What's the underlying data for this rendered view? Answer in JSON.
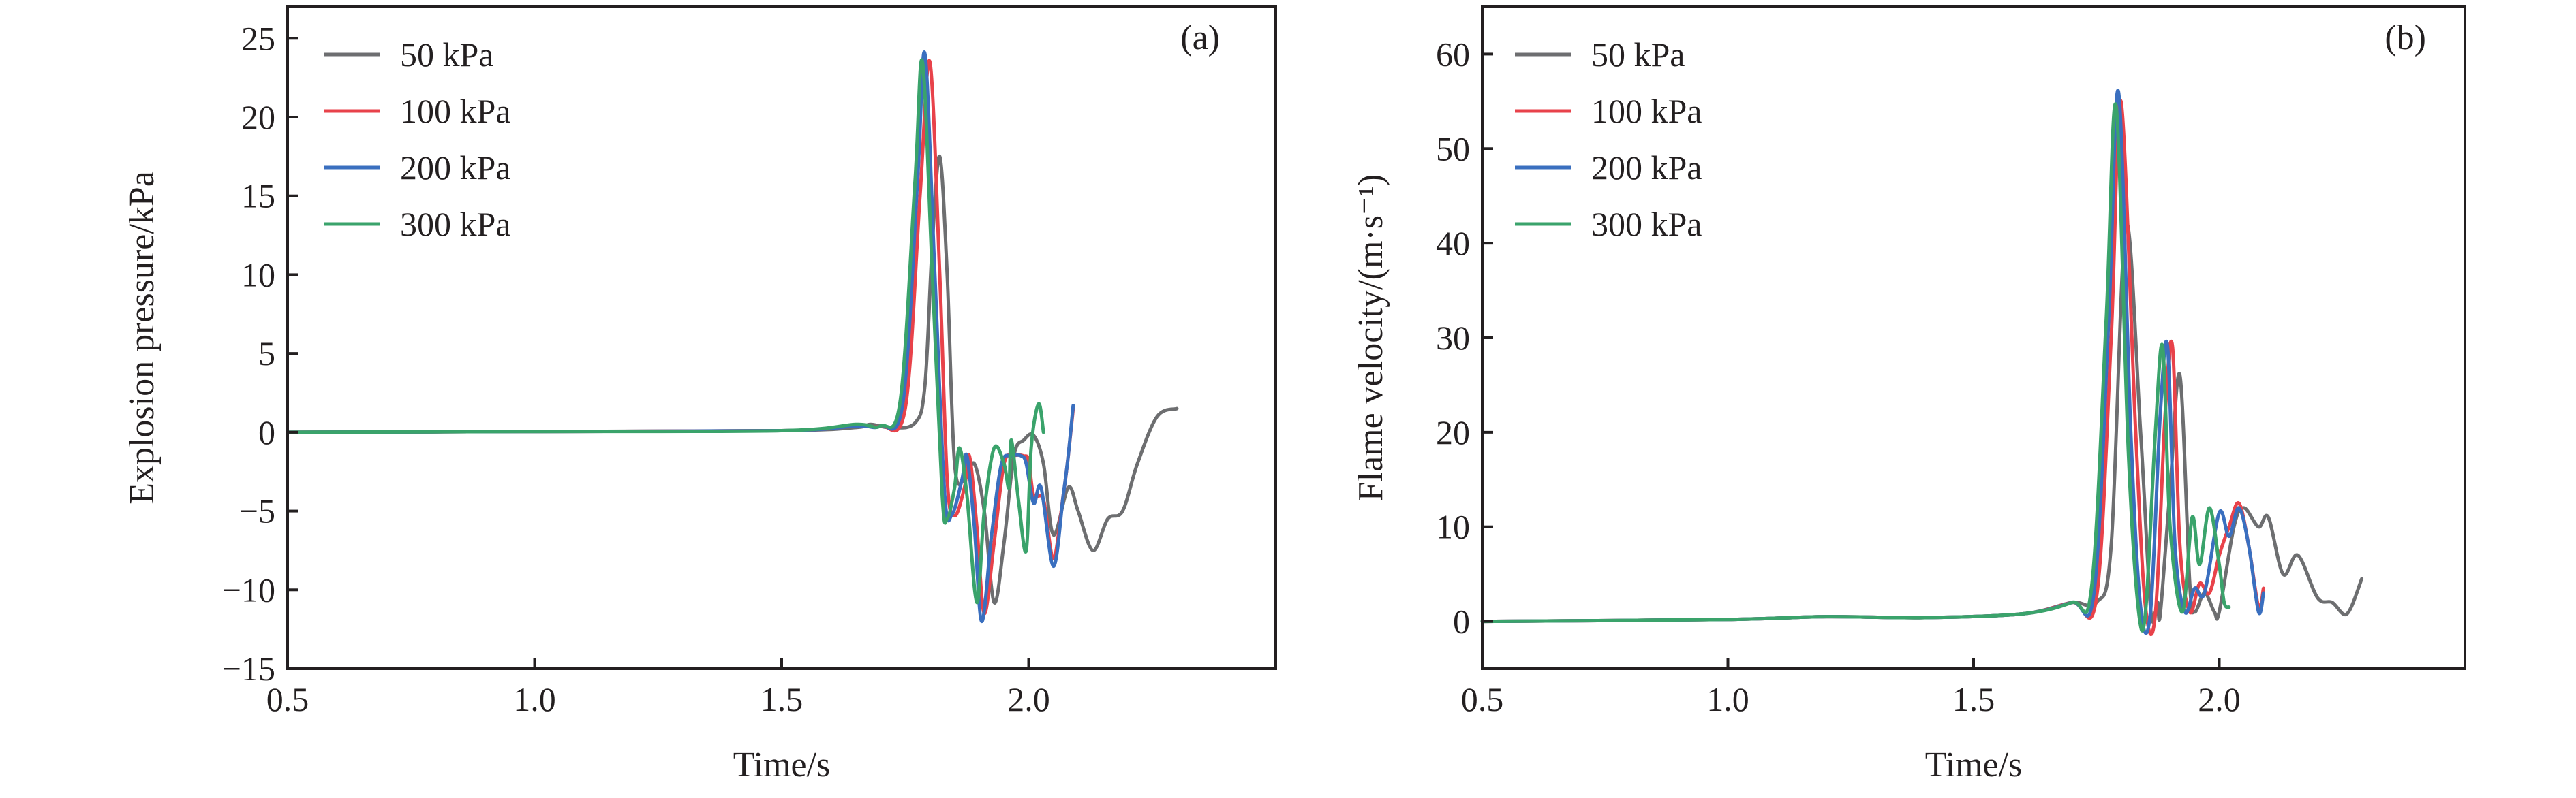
{
  "chart_data": [
    {
      "type": "line",
      "panel_label": "(a)",
      "xlabel": "Time/s",
      "ylabel": "Explosion pressure/kPa",
      "xlim": [
        0.5,
        2.5
      ],
      "ylim": [
        -15,
        27
      ],
      "xticks": [
        0.5,
        1.0,
        1.5,
        2.0
      ],
      "xtick_labels": [
        "0.5",
        "1.0",
        "1.5",
        "2.0"
      ],
      "yticks": [
        -15,
        -10,
        -5,
        0,
        5,
        10,
        15,
        20,
        25
      ],
      "ytick_labels": [
        "−15",
        "−10",
        "−5",
        "0",
        "5",
        "10",
        "15",
        "20",
        "25"
      ],
      "grid": false,
      "legend_position": "top-left",
      "series": [
        {
          "name": "50 kPa",
          "color": "#6d6e70",
          "points": [
            [
              0.5,
              0
            ],
            [
              1.0,
              0.05
            ],
            [
              1.5,
              0.1
            ],
            [
              1.65,
              0.3
            ],
            [
              1.68,
              0.5
            ],
            [
              1.72,
              0.3
            ],
            [
              1.77,
              0.6
            ],
            [
              1.79,
              3
            ],
            [
              1.805,
              12
            ],
            [
              1.82,
              17.5
            ],
            [
              1.835,
              10
            ],
            [
              1.85,
              -2
            ],
            [
              1.87,
              -3
            ],
            [
              1.89,
              -2
            ],
            [
              1.91,
              -5
            ],
            [
              1.93,
              -10.8
            ],
            [
              1.95,
              -7
            ],
            [
              1.97,
              -1.5
            ],
            [
              1.99,
              -0.5
            ],
            [
              2.01,
              -0.2
            ],
            [
              2.03,
              -2
            ],
            [
              2.05,
              -6.5
            ],
            [
              2.08,
              -3.5
            ],
            [
              2.1,
              -5
            ],
            [
              2.13,
              -7.5
            ],
            [
              2.16,
              -5.5
            ],
            [
              2.19,
              -5
            ],
            [
              2.22,
              -2
            ],
            [
              2.26,
              1
            ],
            [
              2.3,
              1.5
            ]
          ]
        },
        {
          "name": "100 kPa",
          "color": "#e8424a",
          "points": [
            [
              0.5,
              0
            ],
            [
              1.0,
              0.05
            ],
            [
              1.5,
              0.1
            ],
            [
              1.65,
              0.4
            ],
            [
              1.7,
              0.4
            ],
            [
              1.75,
              1.5
            ],
            [
              1.78,
              15
            ],
            [
              1.8,
              23.5
            ],
            [
              1.82,
              10
            ],
            [
              1.835,
              -3
            ],
            [
              1.85,
              -5.3
            ],
            [
              1.87,
              -3.5
            ],
            [
              1.88,
              -1.5
            ],
            [
              1.895,
              -6
            ],
            [
              1.91,
              -11.5
            ],
            [
              1.93,
              -7
            ],
            [
              1.95,
              -2
            ],
            [
              1.97,
              -1.5
            ],
            [
              1.99,
              -1.5
            ],
            [
              2.0,
              -1.8
            ],
            [
              2.01,
              -4
            ],
            [
              2.03,
              -4.3
            ],
            [
              2.05,
              -8
            ],
            [
              2.07,
              -4
            ],
            [
              2.08,
              -1.5
            ],
            [
              2.09,
              1.5
            ]
          ]
        },
        {
          "name": "200 kPa",
          "color": "#3a6fbf",
          "points": [
            [
              0.5,
              0
            ],
            [
              1.0,
              0.05
            ],
            [
              1.5,
              0.1
            ],
            [
              1.65,
              0.4
            ],
            [
              1.7,
              0.4
            ],
            [
              1.745,
              1.8
            ],
            [
              1.775,
              16
            ],
            [
              1.79,
              24
            ],
            [
              1.81,
              10
            ],
            [
              1.83,
              -4
            ],
            [
              1.845,
              -5.2
            ],
            [
              1.865,
              -3
            ],
            [
              1.875,
              -1.5
            ],
            [
              1.89,
              -6
            ],
            [
              1.905,
              -12
            ],
            [
              1.925,
              -6.5
            ],
            [
              1.945,
              -2
            ],
            [
              1.965,
              -1.5
            ],
            [
              1.985,
              -1.5
            ],
            [
              1.995,
              -2
            ],
            [
              2.01,
              -4.5
            ],
            [
              2.025,
              -3.5
            ],
            [
              2.05,
              -8.5
            ],
            [
              2.07,
              -4
            ],
            [
              2.08,
              -1.5
            ],
            [
              2.09,
              1.7
            ]
          ]
        },
        {
          "name": "300 kPa",
          "color": "#3aa36b",
          "points": [
            [
              0.5,
              0
            ],
            [
              1.0,
              0.05
            ],
            [
              1.5,
              0.1
            ],
            [
              1.65,
              0.5
            ],
            [
              1.7,
              0.4
            ],
            [
              1.74,
              2
            ],
            [
              1.77,
              16
            ],
            [
              1.785,
              23.5
            ],
            [
              1.805,
              10
            ],
            [
              1.825,
              -4
            ],
            [
              1.835,
              -5.5
            ],
            [
              1.85,
              -3.5
            ],
            [
              1.86,
              -1
            ],
            [
              1.875,
              -4
            ],
            [
              1.895,
              -10.8
            ],
            [
              1.91,
              -5
            ],
            [
              1.93,
              -1
            ],
            [
              1.95,
              -2
            ],
            [
              1.96,
              -3.5
            ],
            [
              1.965,
              -0.5
            ],
            [
              1.98,
              -4.5
            ],
            [
              1.995,
              -7.5
            ],
            [
              2.005,
              -1
            ],
            [
              2.02,
              1.8
            ],
            [
              2.03,
              0
            ]
          ]
        }
      ]
    },
    {
      "type": "line",
      "panel_label": "(b)",
      "xlabel": "Time/s",
      "ylabel": "Flame velocity/(m·s⁻¹)",
      "xlim": [
        0.5,
        2.5
      ],
      "ylim": [
        -5,
        65
      ],
      "xticks": [
        0.5,
        1.0,
        1.5,
        2.0
      ],
      "xtick_labels": [
        "0.5",
        "1.0",
        "1.5",
        "2.0"
      ],
      "yticks": [
        0,
        10,
        20,
        30,
        40,
        50,
        60
      ],
      "ytick_labels": [
        "0",
        "10",
        "20",
        "30",
        "40",
        "50",
        "60"
      ],
      "grid": false,
      "legend_position": "top-left",
      "series": [
        {
          "name": "50 kPa",
          "color": "#6d6e70",
          "points": [
            [
              0.5,
              0
            ],
            [
              1.0,
              0.2
            ],
            [
              1.2,
              0.5
            ],
            [
              1.4,
              0.4
            ],
            [
              1.6,
              0.8
            ],
            [
              1.7,
              2
            ],
            [
              1.75,
              2
            ],
            [
              1.78,
              8
            ],
            [
              1.81,
              42
            ],
            [
              1.84,
              20
            ],
            [
              1.86,
              1.5
            ],
            [
              1.87,
              1
            ],
            [
              1.875,
              2
            ],
            [
              1.88,
              0.8
            ],
            [
              1.9,
              14
            ],
            [
              1.92,
              26
            ],
            [
              1.94,
              4
            ],
            [
              1.95,
              1
            ],
            [
              1.97,
              3
            ],
            [
              1.99,
              1
            ],
            [
              2.0,
              1
            ],
            [
              2.03,
              10
            ],
            [
              2.05,
              12
            ],
            [
              2.08,
              10
            ],
            [
              2.1,
              11
            ],
            [
              2.13,
              5
            ],
            [
              2.16,
              7
            ],
            [
              2.2,
              2.5
            ],
            [
              2.23,
              2
            ],
            [
              2.26,
              0.8
            ],
            [
              2.29,
              4.5
            ]
          ]
        },
        {
          "name": "100 kPa",
          "color": "#e8424a",
          "points": [
            [
              0.5,
              0
            ],
            [
              1.0,
              0.2
            ],
            [
              1.2,
              0.5
            ],
            [
              1.4,
              0.4
            ],
            [
              1.6,
              0.8
            ],
            [
              1.7,
              2
            ],
            [
              1.75,
              2.5
            ],
            [
              1.78,
              30
            ],
            [
              1.8,
              55
            ],
            [
              1.83,
              20
            ],
            [
              1.85,
              1.5
            ],
            [
              1.87,
              0.8
            ],
            [
              1.89,
              22
            ],
            [
              1.905,
              29
            ],
            [
              1.92,
              8
            ],
            [
              1.94,
              1
            ],
            [
              1.96,
              4
            ],
            [
              1.98,
              3
            ],
            [
              2.0,
              7
            ],
            [
              2.02,
              10
            ],
            [
              2.04,
              12.5
            ],
            [
              2.06,
              8
            ],
            [
              2.08,
              1.5
            ],
            [
              2.09,
              3.5
            ]
          ]
        },
        {
          "name": "200 kPa",
          "color": "#3a6fbf",
          "points": [
            [
              0.5,
              0
            ],
            [
              1.0,
              0.2
            ],
            [
              1.2,
              0.5
            ],
            [
              1.4,
              0.4
            ],
            [
              1.6,
              0.8
            ],
            [
              1.7,
              2
            ],
            [
              1.745,
              3
            ],
            [
              1.775,
              32
            ],
            [
              1.795,
              56
            ],
            [
              1.82,
              20
            ],
            [
              1.84,
              1.5
            ],
            [
              1.86,
              1
            ],
            [
              1.88,
              22
            ],
            [
              1.895,
              29
            ],
            [
              1.91,
              8
            ],
            [
              1.93,
              1
            ],
            [
              1.95,
              3.5
            ],
            [
              1.97,
              3
            ],
            [
              2.0,
              11.5
            ],
            [
              2.02,
              9
            ],
            [
              2.04,
              12
            ],
            [
              2.06,
              8
            ],
            [
              2.08,
              1
            ],
            [
              2.09,
              3
            ]
          ]
        },
        {
          "name": "300 kPa",
          "color": "#3aa36b",
          "points": [
            [
              0.5,
              0
            ],
            [
              1.0,
              0.2
            ],
            [
              1.2,
              0.5
            ],
            [
              1.4,
              0.4
            ],
            [
              1.6,
              0.8
            ],
            [
              1.7,
              2
            ],
            [
              1.74,
              3.5
            ],
            [
              1.77,
              32
            ],
            [
              1.79,
              54.5
            ],
            [
              1.815,
              18
            ],
            [
              1.835,
              1.5
            ],
            [
              1.85,
              1
            ],
            [
              1.87,
              20
            ],
            [
              1.885,
              29
            ],
            [
              1.9,
              10
            ],
            [
              1.925,
              1
            ],
            [
              1.945,
              11
            ],
            [
              1.96,
              6
            ],
            [
              1.98,
              12
            ],
            [
              2.0,
              6
            ],
            [
              2.01,
              2
            ],
            [
              2.02,
              1.5
            ]
          ]
        }
      ]
    }
  ]
}
